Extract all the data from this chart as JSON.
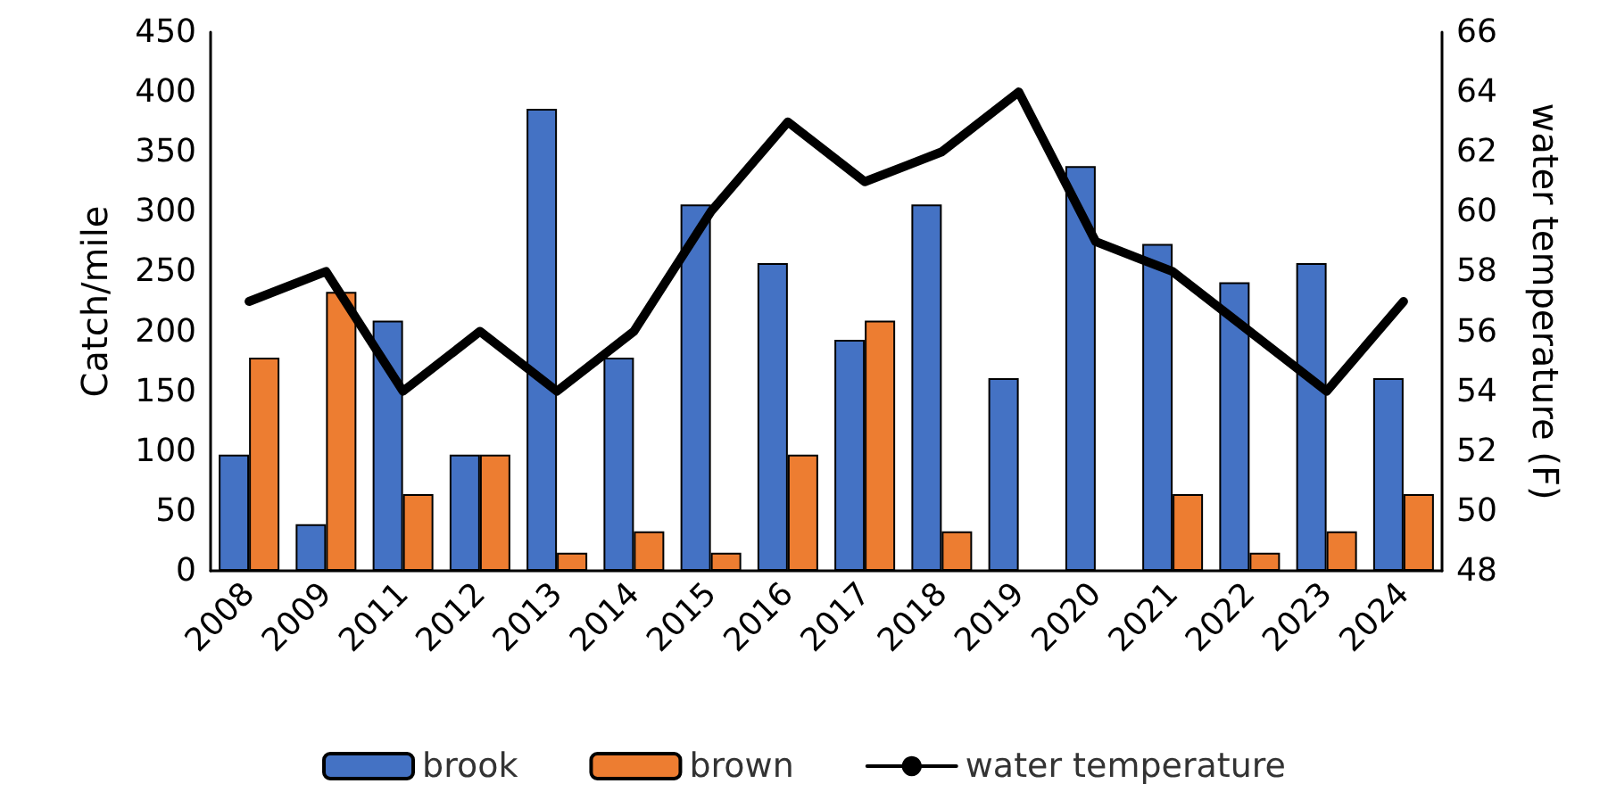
{
  "chart_data": {
    "type": "bar",
    "ylabel": "Catch/mile",
    "y2label": "water temperature (F)",
    "categories": [
      "2008",
      "2009",
      "2011",
      "2012",
      "2013",
      "2014",
      "2015",
      "2016",
      "2017",
      "2018",
      "2019",
      "2020",
      "2021",
      "2022",
      "2023",
      "2024"
    ],
    "series": [
      {
        "name": "brook",
        "color": "#4472c4",
        "values": [
          97,
          39,
          209,
          97,
          386,
          178,
          306,
          257,
          193,
          306,
          161,
          338,
          273,
          241,
          257,
          161
        ]
      },
      {
        "name": "brown",
        "color": "#ed7d31",
        "values": [
          178,
          233,
          64,
          97,
          15,
          33,
          15,
          97,
          209,
          33,
          null,
          null,
          64,
          15,
          33,
          64
        ]
      },
      {
        "name": "water temperature",
        "type": "line",
        "axis": "y2",
        "color": "#000000",
        "values": [
          57,
          58,
          54,
          56,
          54,
          56,
          60,
          63,
          61,
          62,
          64,
          59,
          58,
          56,
          54,
          57
        ]
      }
    ],
    "ylim": [
      0,
      450
    ],
    "yticks": [
      0,
      50,
      100,
      150,
      200,
      250,
      300,
      350,
      400,
      450
    ],
    "y2lim": [
      48,
      66
    ],
    "y2ticks": [
      48,
      50,
      52,
      54,
      56,
      58,
      60,
      62,
      64,
      66
    ],
    "grid": false,
    "legend": "bottom",
    "marker": "none",
    "line_style": "solid"
  }
}
